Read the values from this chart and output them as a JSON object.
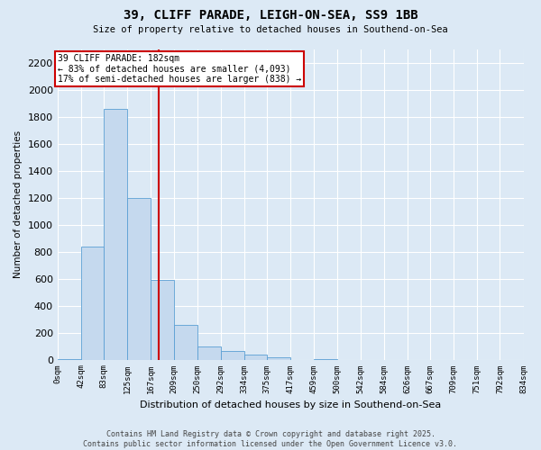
{
  "title_line1": "39, CLIFF PARADE, LEIGH-ON-SEA, SS9 1BB",
  "title_line2": "Size of property relative to detached houses in Southend-on-Sea",
  "xlabel": "Distribution of detached houses by size in Southend-on-Sea",
  "ylabel": "Number of detached properties",
  "bin_edges": [
    0,
    42,
    83,
    125,
    167,
    209,
    250,
    292,
    334,
    375,
    417,
    459,
    500,
    542,
    584,
    626,
    667,
    709,
    751,
    792,
    834
  ],
  "bar_heights": [
    5,
    840,
    1860,
    1200,
    590,
    255,
    100,
    65,
    40,
    20,
    0,
    5,
    0,
    0,
    0,
    0,
    0,
    0,
    0,
    0
  ],
  "bar_color": "#c5d9ee",
  "bar_edge_color": "#5a9fd4",
  "property_size": 182,
  "annotation_line1": "39 CLIFF PARADE: 182sqm",
  "annotation_line2": "← 83% of detached houses are smaller (4,093)",
  "annotation_line3": "17% of semi-detached houses are larger (838) →",
  "vline_color": "#cc0000",
  "background_color": "#dce9f5",
  "grid_color": "#ffffff",
  "ylim": [
    0,
    2300
  ],
  "yticks": [
    0,
    200,
    400,
    600,
    800,
    1000,
    1200,
    1400,
    1600,
    1800,
    2000,
    2200
  ],
  "footer_line1": "Contains HM Land Registry data © Crown copyright and database right 2025.",
  "footer_line2": "Contains public sector information licensed under the Open Government Licence v3.0."
}
